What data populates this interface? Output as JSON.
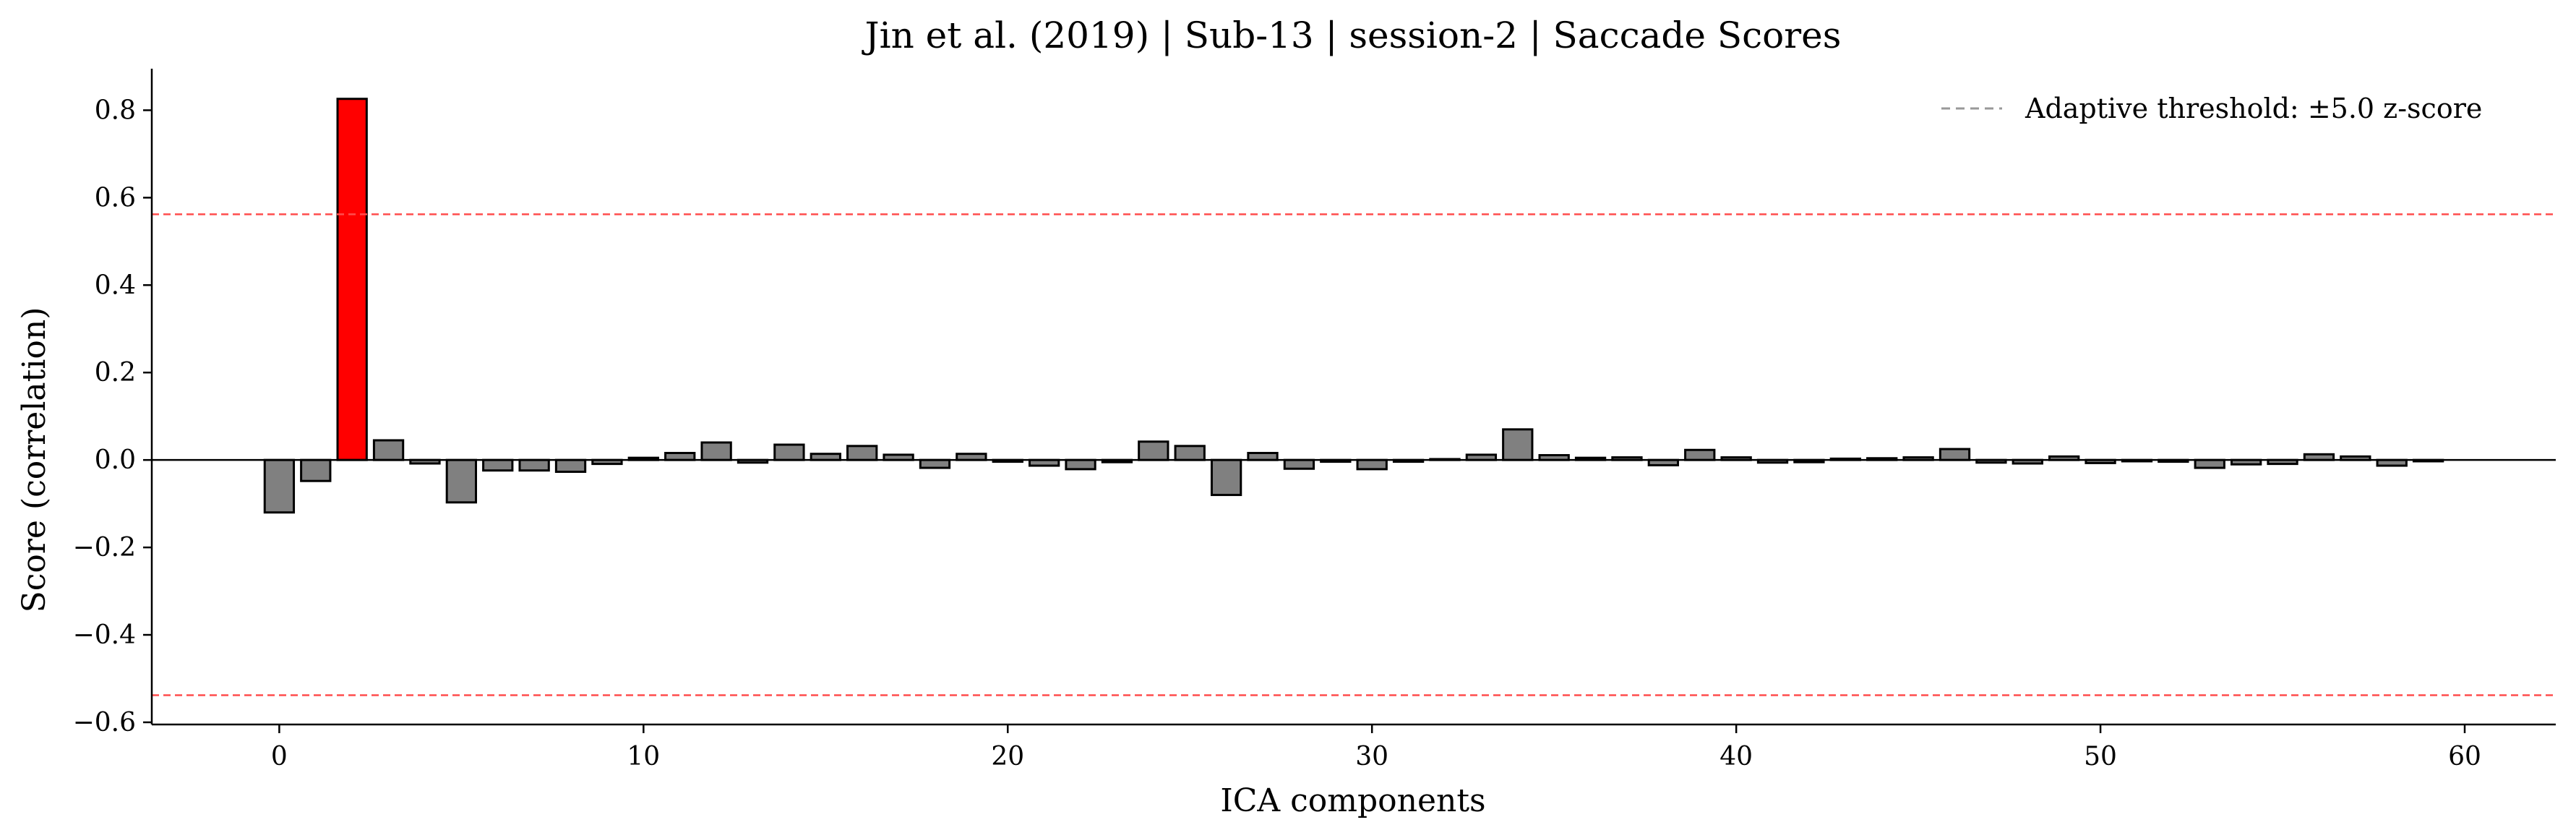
{
  "chart_data": {
    "type": "bar",
    "title": "Jin et al. (2019) | Sub-13 | session-2 | Saccade Scores",
    "xlabel": "ICA components",
    "ylabel": "Score (correlation)",
    "xlim": [
      -3.5,
      62.5
    ],
    "ylim": [
      -0.605,
      0.895
    ],
    "x_ticks": [
      0,
      10,
      20,
      30,
      40,
      50,
      60
    ],
    "y_ticks": [
      -0.6,
      -0.4,
      -0.2,
      0.0,
      0.2,
      0.4,
      0.6,
      0.8
    ],
    "x_tick_labels": [
      "0",
      "10",
      "20",
      "30",
      "40",
      "50",
      "60"
    ],
    "y_tick_labels": [
      "−0.6",
      "−0.4",
      "−0.2",
      "0.0",
      "0.2",
      "0.4",
      "0.6",
      "0.8"
    ],
    "thresholds": [
      0.562,
      -0.538
    ],
    "threshold_color": "#ff4d4d",
    "bar_color": "#808080",
    "highlight_color": "#ff0000",
    "flagged_components": [
      2
    ],
    "legend": {
      "label": "Adaptive threshold: ±5.0 z-score",
      "placement": "top-right"
    },
    "grid": false,
    "x": [
      0,
      1,
      2,
      3,
      4,
      5,
      6,
      7,
      8,
      9,
      10,
      11,
      12,
      13,
      14,
      15,
      16,
      17,
      18,
      19,
      20,
      21,
      22,
      23,
      24,
      25,
      26,
      27,
      28,
      29,
      30,
      31,
      32,
      33,
      34,
      35,
      36,
      37,
      38,
      39,
      40,
      41,
      42,
      43,
      44,
      45,
      46,
      47,
      48,
      49,
      50,
      51,
      52,
      53,
      54,
      55,
      56,
      57,
      58,
      59
    ],
    "values": [
      -0.12,
      -0.048,
      0.826,
      0.045,
      -0.008,
      -0.097,
      -0.024,
      -0.024,
      -0.027,
      -0.009,
      0.005,
      0.016,
      0.04,
      -0.006,
      0.035,
      0.014,
      0.032,
      0.012,
      -0.018,
      0.014,
      -0.004,
      -0.013,
      -0.021,
      -0.005,
      0.042,
      0.032,
      -0.08,
      0.016,
      -0.02,
      -0.004,
      -0.021,
      -0.004,
      0.002,
      0.012,
      0.07,
      0.011,
      0.005,
      0.006,
      -0.012,
      0.023,
      0.006,
      -0.006,
      -0.005,
      0.003,
      0.004,
      0.006,
      0.025,
      -0.006,
      -0.008,
      0.008,
      -0.007,
      -0.003,
      -0.004,
      -0.018,
      -0.01,
      -0.009,
      0.013,
      0.008,
      -0.013,
      -0.003
    ]
  }
}
